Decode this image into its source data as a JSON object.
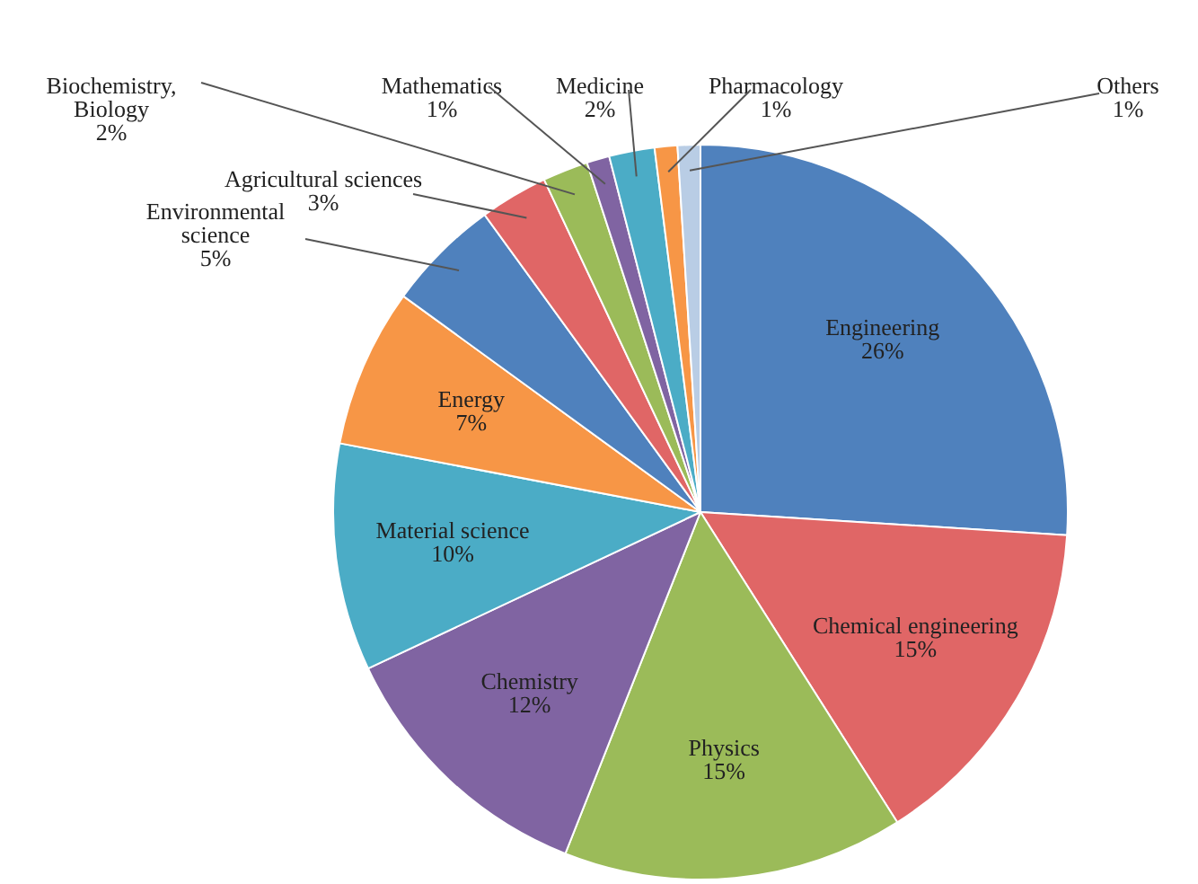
{
  "chart_data": {
    "type": "pie",
    "categories": [
      "Engineering",
      "Chemical engineering",
      "Physics",
      "Chemistry",
      "Material science",
      "Energy",
      "Environmental science",
      "Agricultural sciences",
      "Biochemistry, Biology",
      "Mathematics",
      "Medicine",
      "Pharmacology",
      "Others"
    ],
    "values": [
      26,
      15,
      15,
      12,
      10,
      7,
      5,
      3,
      2,
      1,
      2,
      1,
      1
    ],
    "colors": [
      "#4f81bd",
      "#e06666",
      "#9bbb59",
      "#8064a2",
      "#4bacc6",
      "#f79646",
      "#4f81bd",
      "#e06666",
      "#9bbb59",
      "#8064a2",
      "#4bacc6",
      "#f79646",
      "#b9cde5"
    ],
    "value_labels": [
      "26%",
      "15%",
      "15%",
      "12%",
      "10%",
      "7%",
      "5%",
      "3%",
      "2%",
      "1%",
      "2%",
      "1%",
      "1%"
    ]
  }
}
